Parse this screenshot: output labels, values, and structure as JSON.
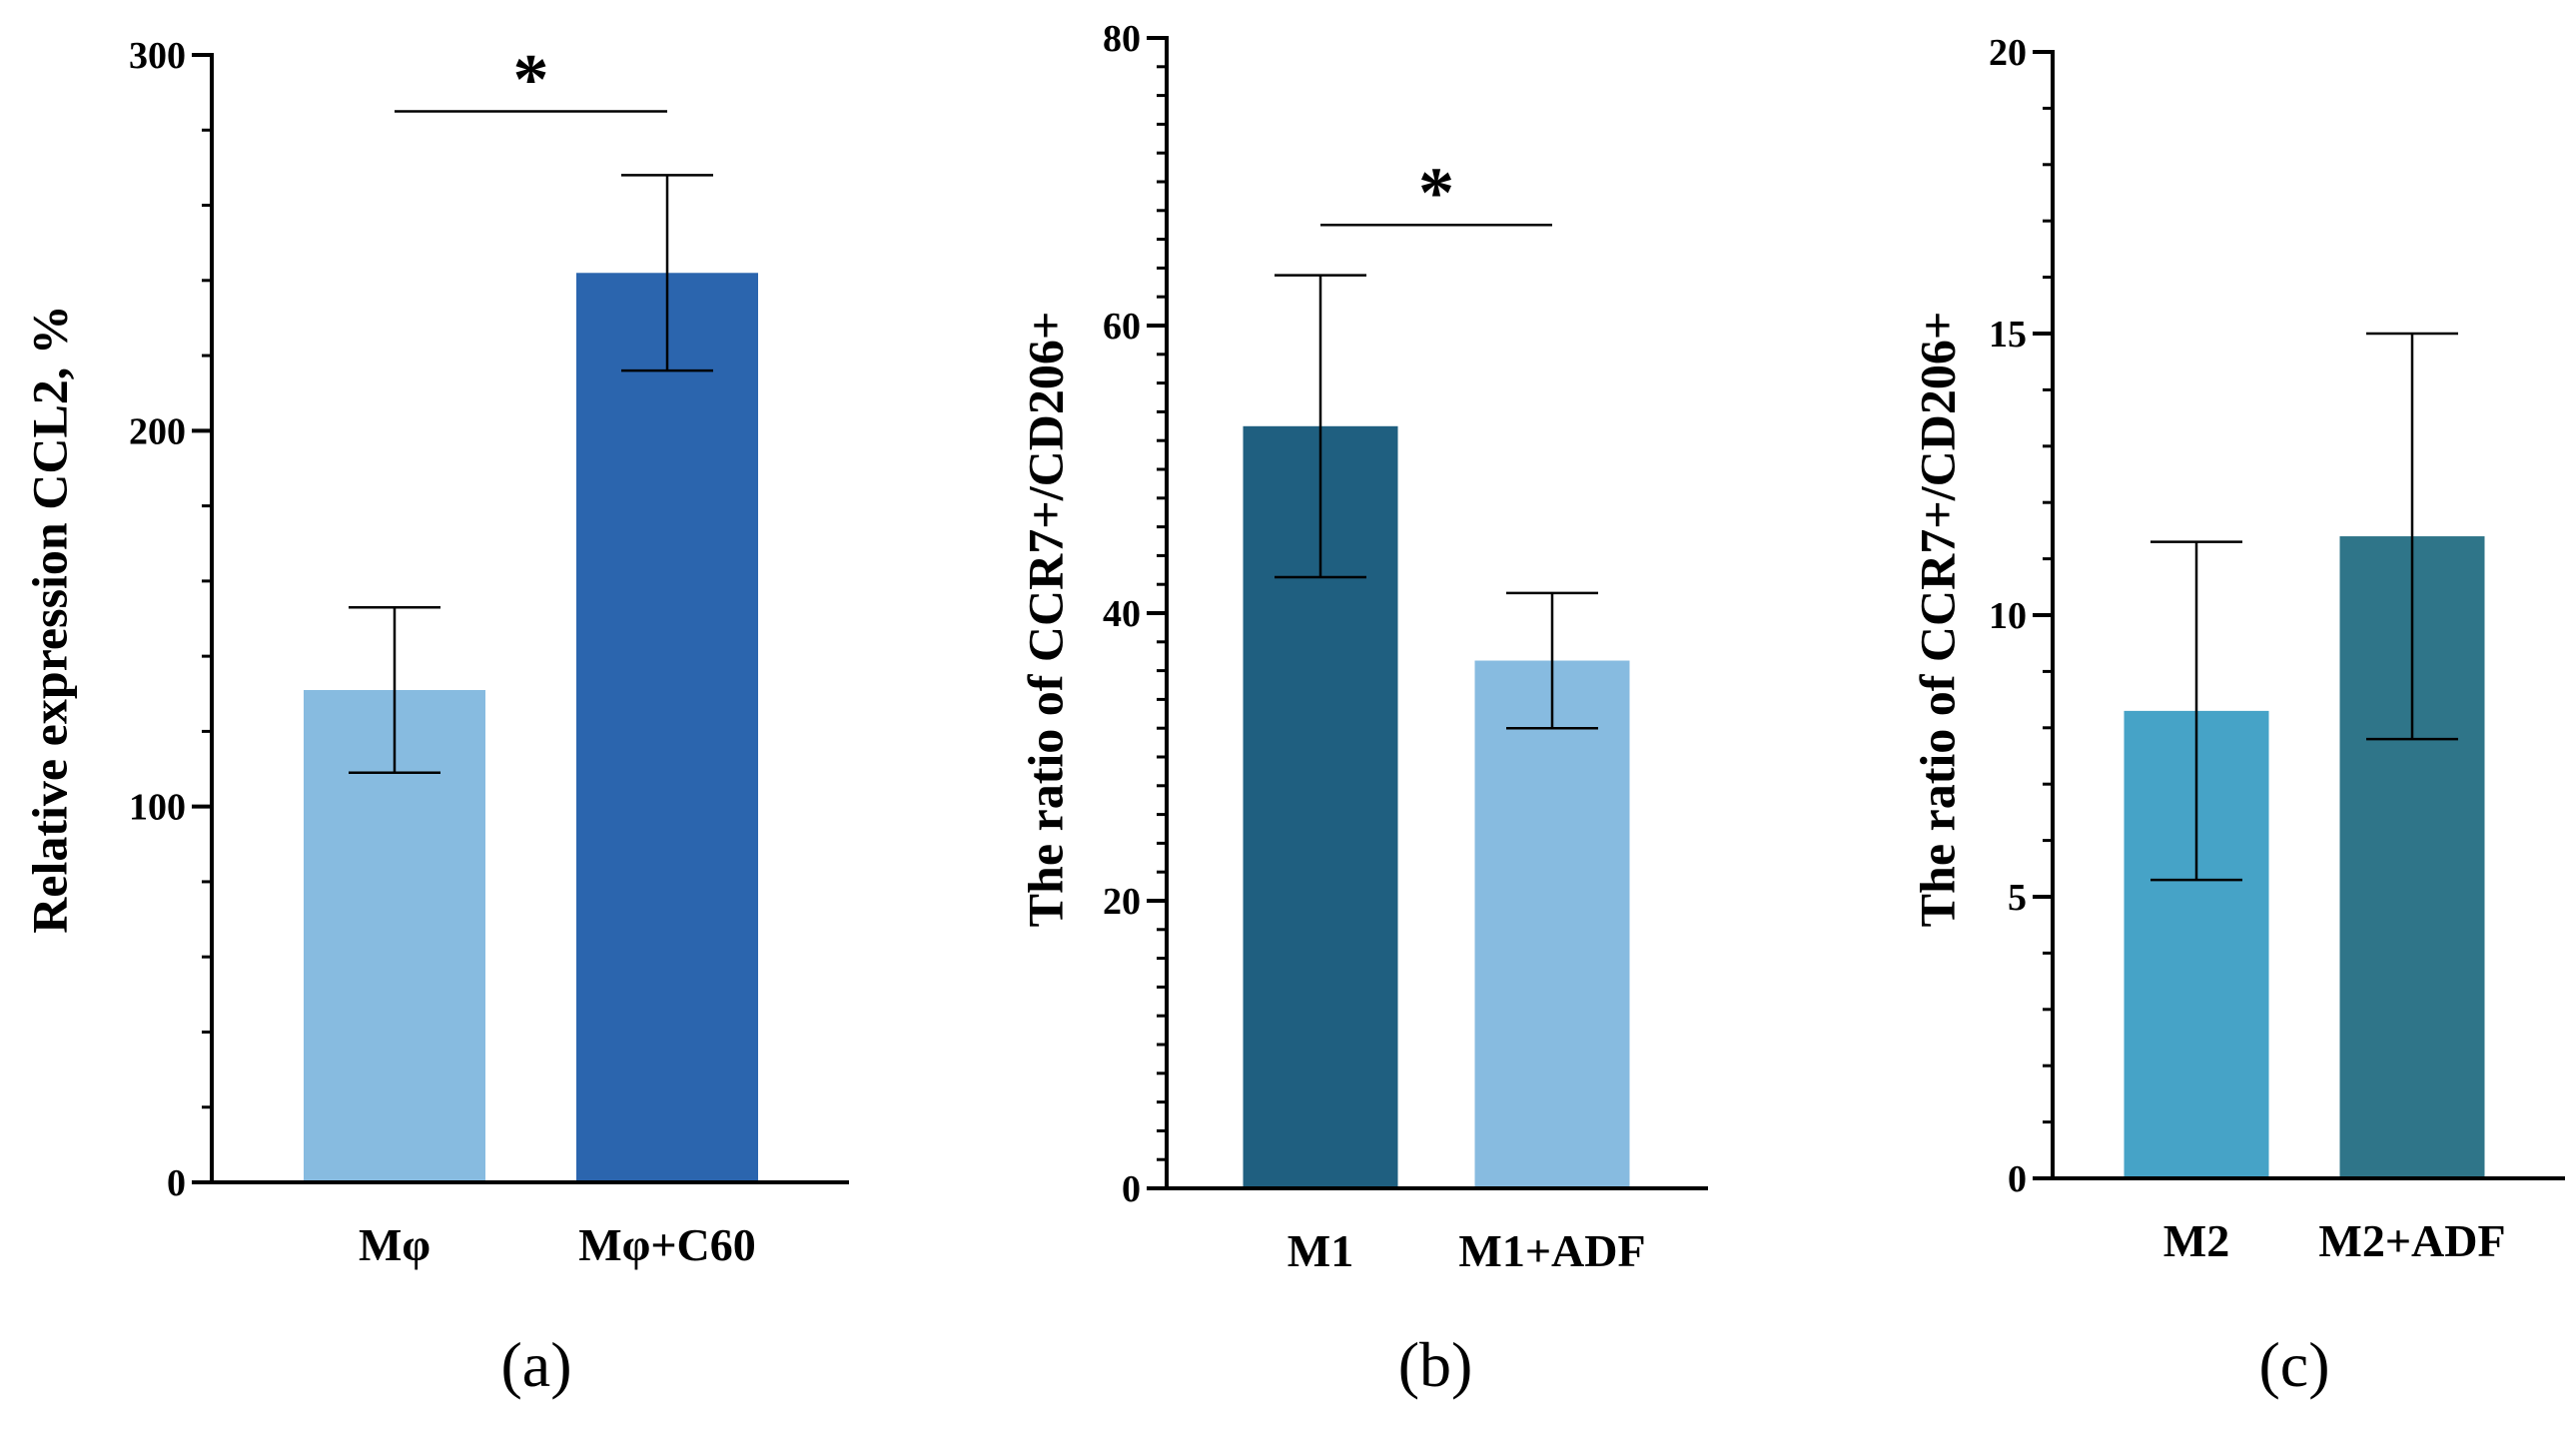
{
  "chart_data": [
    {
      "type": "bar",
      "panel_label": "(a)",
      "ylabel": "Relative expression CCL2, %",
      "ylim": [
        0,
        300
      ],
      "major_ticks": [
        0,
        100,
        200,
        300
      ],
      "tick_labels": [
        "0",
        "100",
        "200",
        "300"
      ],
      "minor_step": 20,
      "categories": [
        "Mφ",
        "Mφ+C60"
      ],
      "values": [
        131,
        242
      ],
      "errors": [
        22,
        26
      ],
      "colors": [
        "#87BBE0",
        "#2B65AE"
      ],
      "significance": [
        {
          "between": [
            0,
            1
          ],
          "label": "*",
          "y": 285
        }
      ]
    },
    {
      "type": "bar",
      "panel_label": "(b)",
      "ylabel": "The ratio of CCR7+/CD206+",
      "ylim": [
        0,
        80
      ],
      "major_ticks": [
        0,
        20,
        40,
        60,
        80
      ],
      "tick_labels": [
        "0",
        "20",
        "40",
        "60",
        "80"
      ],
      "minor_step": 2,
      "categories": [
        "M1",
        "M1+ADF"
      ],
      "values": [
        53,
        36.7
      ],
      "errors": [
        10.5,
        4.7
      ],
      "colors": [
        "#1F5F80",
        "#87BBE0"
      ],
      "significance": [
        {
          "between": [
            0,
            1
          ],
          "label": "*",
          "y": 67
        }
      ]
    },
    {
      "type": "bar",
      "panel_label": "(c)",
      "ylabel": "The ratio of CCR7+/CD206+",
      "ylim": [
        0,
        20
      ],
      "major_ticks": [
        0,
        5,
        10,
        15,
        20
      ],
      "tick_labels": [
        "0",
        "5",
        "10",
        "15",
        "20"
      ],
      "minor_step": 1,
      "categories": [
        "M2",
        "M2+ADF"
      ],
      "values": [
        8.3,
        11.4
      ],
      "errors": [
        3,
        3.6
      ],
      "colors": [
        "#46A3C7",
        "#2F7589"
      ],
      "significance": []
    }
  ]
}
